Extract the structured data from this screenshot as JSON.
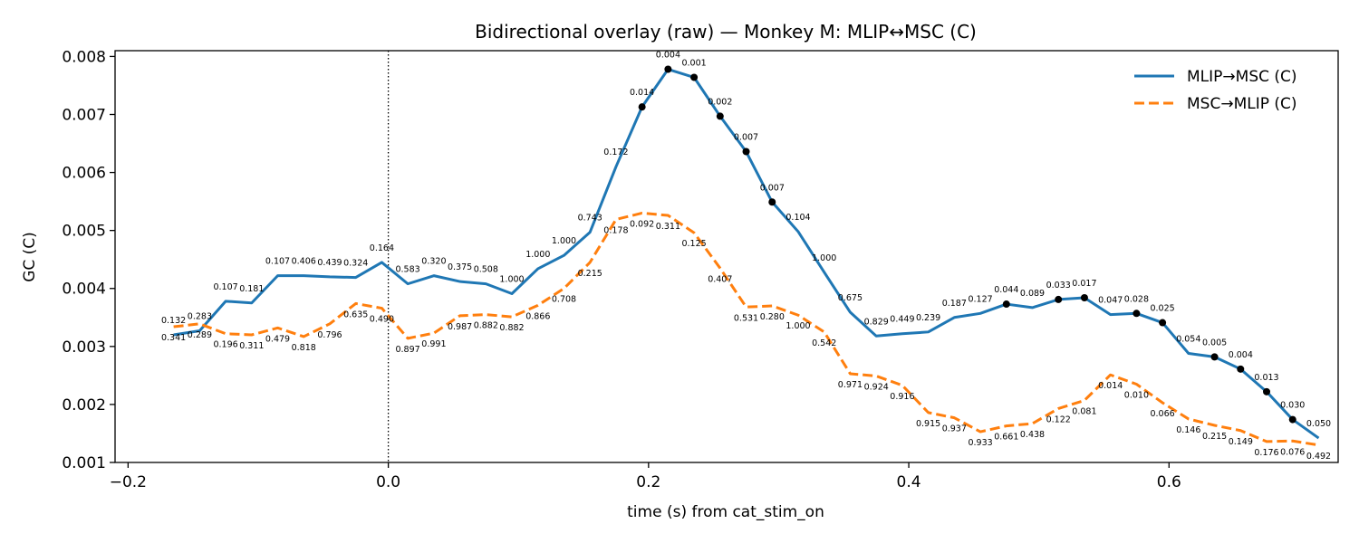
{
  "chart_data": {
    "type": "line",
    "title": "Bidirectional overlay (raw) — Monkey M: MLIP↔MSC (C)",
    "xlabel": "time (s) from cat_stim_on",
    "ylabel": "GC (C)",
    "xlim": [
      -0.21,
      0.73
    ],
    "ylim": [
      0.001,
      0.0081
    ],
    "xticks": [
      -0.2,
      0.0,
      0.2,
      0.4,
      0.6
    ],
    "xtick_labels": [
      "−0.2",
      "0.0",
      "0.2",
      "0.4",
      "0.6"
    ],
    "yticks": [
      0.001,
      0.002,
      0.003,
      0.004,
      0.005,
      0.006,
      0.007,
      0.008
    ],
    "ytick_labels": [
      "0.001",
      "0.002",
      "0.003",
      "0.004",
      "0.005",
      "0.006",
      "0.007",
      "0.008"
    ],
    "vline_x": 0.0,
    "legend_position": "top-right",
    "x": [
      -0.165,
      -0.145,
      -0.125,
      -0.105,
      -0.085,
      -0.065,
      -0.045,
      -0.025,
      -0.005,
      0.015,
      0.035,
      0.055,
      0.075,
      0.095,
      0.115,
      0.135,
      0.155,
      0.175,
      0.195,
      0.215,
      0.235,
      0.255,
      0.275,
      0.295,
      0.315,
      0.335,
      0.355,
      0.375,
      0.395,
      0.415,
      0.435,
      0.455,
      0.475,
      0.495,
      0.515,
      0.535,
      0.555,
      0.575,
      0.595,
      0.615,
      0.635,
      0.655,
      0.675,
      0.695,
      0.715
    ],
    "series": [
      {
        "name": "MLIP→MSC (C)",
        "color": "#1f77b4",
        "dash": "solid",
        "values": [
          0.0032,
          0.00327,
          0.00378,
          0.00375,
          0.00422,
          0.00422,
          0.0042,
          0.00419,
          0.00445,
          0.00408,
          0.00422,
          0.00412,
          0.00408,
          0.00391,
          0.00434,
          0.00457,
          0.00497,
          0.0061,
          0.00713,
          0.00778,
          0.00764,
          0.00697,
          0.00636,
          0.00549,
          0.00498,
          0.00428,
          0.00359,
          0.00318,
          0.00322,
          0.00325,
          0.0035,
          0.00357,
          0.00373,
          0.00367,
          0.00381,
          0.00384,
          0.00355,
          0.00357,
          0.00341,
          0.00288,
          0.00282,
          0.00261,
          0.00222,
          0.00174,
          0.00142
        ],
        "pvalues": [
          "0.132",
          "0.283",
          "0.107",
          "0.181",
          "0.107",
          "0.406",
          "0.439",
          "0.324",
          "0.164",
          "0.583",
          "0.320",
          "0.375",
          "0.508",
          "1.000",
          "1.000",
          "1.000",
          "0.743",
          "0.172",
          "0.014",
          "0.004",
          "0.001",
          "0.002",
          "0.007",
          "0.007",
          "0.104",
          "1.000",
          "0.675",
          "0.829",
          "0.449",
          "0.239",
          "0.187",
          "0.127",
          "0.044",
          "0.089",
          "0.033",
          "0.017",
          "0.047",
          "0.028",
          "0.025",
          "0.054",
          "0.005",
          "0.004",
          "0.013",
          "0.030",
          "0.050"
        ],
        "significant_markers": [
          0.195,
          0.215,
          0.235,
          0.255,
          0.275,
          0.295,
          0.475,
          0.515,
          0.535,
          0.575,
          0.595,
          0.635,
          0.655,
          0.675,
          0.695
        ]
      },
      {
        "name": "MSC→MLIP (C)",
        "color": "#ff7f0e",
        "dash": "dashed",
        "values": [
          0.00334,
          0.00339,
          0.00322,
          0.0032,
          0.00332,
          0.00317,
          0.00339,
          0.00374,
          0.00366,
          0.00314,
          0.00323,
          0.00353,
          0.00355,
          0.00351,
          0.00371,
          0.004,
          0.00445,
          0.00519,
          0.0053,
          0.00526,
          0.00496,
          0.00435,
          0.00368,
          0.0037,
          0.00354,
          0.00325,
          0.00253,
          0.00249,
          0.00233,
          0.00186,
          0.00177,
          0.00153,
          0.00163,
          0.00167,
          0.00193,
          0.00207,
          0.00251,
          0.00235,
          0.00203,
          0.00175,
          0.00164,
          0.00155,
          0.00136,
          0.00137,
          0.0013
        ],
        "pvalues": [
          "0.341",
          "0.289",
          "0.196",
          "0.311",
          "0.479",
          "0.818",
          "0.796",
          "0.635",
          "0.490",
          "0.897",
          "0.991",
          "0.987",
          "0.882",
          "0.882",
          "0.866",
          "0.708",
          "0.215",
          "0.178",
          "0.092",
          "0.311",
          "0.125",
          "0.407",
          "0.531",
          "0.280",
          "1.000",
          "0.542",
          "0.971",
          "0.924",
          "0.916",
          "0.915",
          "0.937",
          "0.933",
          "0.661",
          "0.438",
          "0.122",
          "0.081",
          "0.014",
          "0.010",
          "0.066",
          "0.146",
          "0.215",
          "0.149",
          "0.176",
          "0.076",
          "0.492"
        ]
      }
    ]
  }
}
